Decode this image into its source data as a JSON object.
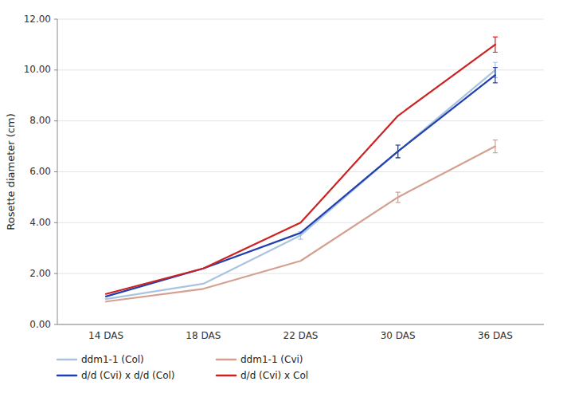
{
  "chart_data": {
    "type": "line",
    "categories": [
      "14 DAS",
      "18 DAS",
      "22 DAS",
      "30 DAS",
      "36 DAS"
    ],
    "series": [
      {
        "name": "ddm1-1 (Col)",
        "color": "#aac4e0",
        "values": [
          1.0,
          1.6,
          3.5,
          6.8,
          10.0
        ],
        "errors": [
          null,
          null,
          0.15,
          0.25,
          0.3
        ]
      },
      {
        "name": "ddm1-1 (Cvi)",
        "color": "#d4a090",
        "values": [
          0.9,
          1.4,
          2.5,
          5.0,
          7.0
        ],
        "errors": [
          null,
          null,
          null,
          0.2,
          0.25
        ]
      },
      {
        "name": "d/d (Cvi) x d/d (Col)",
        "color": "#2040b0",
        "values": [
          1.1,
          2.2,
          3.6,
          6.8,
          9.8
        ],
        "errors": [
          null,
          null,
          null,
          0.25,
          0.3
        ]
      },
      {
        "name": "d/d (Cvi) x Col",
        "color": "#cc2222",
        "values": [
          1.2,
          2.2,
          4.0,
          8.2,
          11.0
        ],
        "errors": [
          null,
          null,
          null,
          null,
          0.3
        ]
      }
    ],
    "y_label": "Rosette diameter (cm)",
    "ylim": [
      0,
      12.0
    ],
    "yticks": [
      {
        "value": 0.0,
        "label": "0.00"
      },
      {
        "value": 2.0,
        "label": "2.00"
      },
      {
        "value": 4.0,
        "label": "4.00"
      },
      {
        "value": 6.0,
        "label": "6.00"
      },
      {
        "value": 8.0,
        "label": "8.00"
      },
      {
        "value": 10.0,
        "label": "10.00"
      },
      {
        "value": 12.0,
        "label": "12.00"
      }
    ],
    "grid": true,
    "legend": "bottom"
  }
}
